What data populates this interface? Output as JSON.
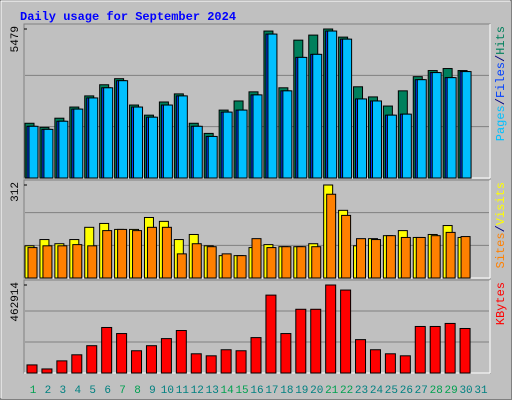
{
  "title": "Daily usage for September 2024",
  "categories": [
    "1",
    "2",
    "3",
    "4",
    "5",
    "6",
    "7",
    "8",
    "9",
    "10",
    "11",
    "12",
    "13",
    "14",
    "15",
    "16",
    "17",
    "18",
    "19",
    "20",
    "21",
    "22",
    "23",
    "24",
    "25",
    "26",
    "27",
    "28",
    "29",
    "30",
    "31"
  ],
  "weekend_categories": [
    "1",
    "7",
    "8",
    "14",
    "15",
    "21",
    "22",
    "28",
    "29"
  ],
  "weekday_label_color": "#008080",
  "weekend_label_color": "#00a050",
  "label_separator": "/",
  "chart_data": [
    {
      "type": "bar",
      "ylim": [
        0,
        5479
      ],
      "yticks": [
        5479
      ],
      "grid": true,
      "series": [
        {
          "name": "Hits",
          "color": "#00805c",
          "values": [
            2013,
            1864,
            2199,
            2609,
            3019,
            3429,
            3652,
            2683,
            2311,
            2795,
            3093,
            2013,
            1640,
            2497,
            2833,
            3168,
            5404,
            3317,
            5069,
            5255,
            5479,
            5181,
            3354,
            2982,
            2646,
            3205,
            3727,
            3951,
            4025,
            3951,
            null
          ]
        },
        {
          "name": "Files",
          "color": "#0040ff",
          "values": [
            1901,
            1789,
            2087,
            2534,
            2944,
            3317,
            3578,
            2609,
            2236,
            2683,
            3019,
            1901,
            1528,
            2423,
            2497,
            3056,
            5292,
            3205,
            4435,
            4547,
            5404,
            5106,
            2907,
            2833,
            2311,
            2348,
            3615,
            3876,
            3690,
            3913,
            null
          ]
        },
        {
          "name": "Pages",
          "color": "#00c0ff",
          "values": [
            1901,
            1789,
            2087,
            2534,
            2944,
            3317,
            3578,
            2609,
            2236,
            2683,
            3019,
            1901,
            1528,
            2423,
            2497,
            3056,
            5292,
            3205,
            4435,
            4547,
            5404,
            5106,
            2907,
            2833,
            2311,
            2348,
            3615,
            3876,
            3690,
            3913,
            null
          ]
        }
      ]
    },
    {
      "type": "bar",
      "ylim": [
        0,
        312
      ],
      "yticks": [
        312
      ],
      "grid": true,
      "series": [
        {
          "name": "Visits",
          "color": "#ffff00",
          "values": [
            108,
            129,
            115,
            129,
            170,
            183,
            163,
            163,
            203,
            190,
            129,
            146,
            108,
            75,
            75,
            102,
            112,
            105,
            105,
            115,
            312,
            227,
            108,
            132,
            142,
            159,
            136,
            146,
            176,
            136,
            null
          ]
        },
        {
          "name": "Sites",
          "color": "#ff8000",
          "values": [
            102,
            108,
            108,
            112,
            108,
            159,
            163,
            159,
            170,
            170,
            81,
            115,
            105,
            81,
            75,
            132,
            102,
            105,
            105,
            105,
            281,
            210,
            132,
            129,
            142,
            136,
            136,
            142,
            153,
            139,
            null
          ]
        }
      ]
    },
    {
      "type": "bar",
      "ylim": [
        0,
        462914
      ],
      "yticks": [
        462914
      ],
      "grid": true,
      "series": [
        {
          "name": "KBytes",
          "color": "#ff0000",
          "values": [
            42569,
            21284,
            63852,
            95778,
            143667,
            239445,
            207519,
            117062,
            143667,
            180914,
            223482,
            101099,
            90457,
            122383,
            117062,
            186235,
            409717,
            207519,
            335223,
            335223,
            462914,
            436322,
            175593,
            122383,
            101099,
            90457,
            244766,
            244766,
            260729,
            234124,
            null
          ]
        }
      ]
    }
  ]
}
